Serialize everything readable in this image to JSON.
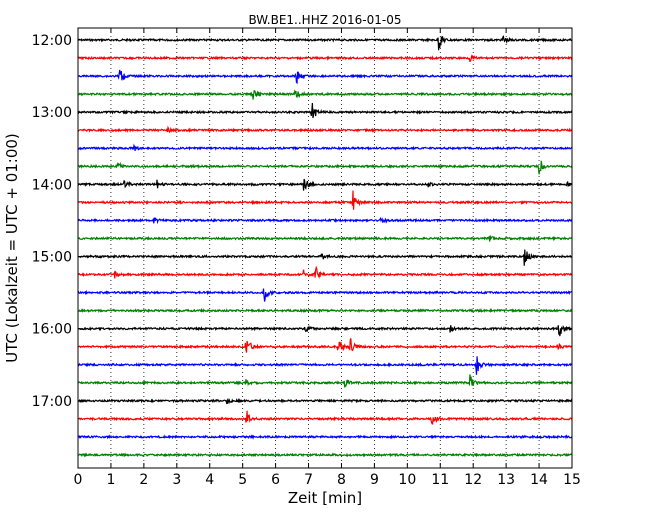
{
  "chart_data": {
    "type": "line",
    "title": "BW.BE1..HHZ 2016-01-05",
    "xlabel": "Zeit  [min]",
    "ylabel": "UTC (Lokalzeit = UTC + 01:00)",
    "xlim": [
      0,
      15
    ],
    "x_ticks": [
      "0",
      "1",
      "2",
      "3",
      "4",
      "5",
      "6",
      "7",
      "8",
      "9",
      "10",
      "11",
      "12",
      "13",
      "14",
      "15"
    ],
    "y_ticks": [
      "12:00",
      "13:00",
      "14:00",
      "15:00",
      "16:00",
      "17:00"
    ],
    "grid": "vertical dotted",
    "colors": [
      "#000000",
      "#ff0000",
      "#0000ff",
      "#008000"
    ],
    "rows": [
      {
        "time": "12:00",
        "color": "#000000",
        "events": [
          {
            "x": 10.95,
            "amp": 11
          },
          {
            "x": 12.9,
            "amp": 5
          }
        ]
      },
      {
        "time": "12:15",
        "color": "#ff0000",
        "events": [
          {
            "x": 11.9,
            "amp": 3
          }
        ]
      },
      {
        "time": "12:30",
        "color": "#0000ff",
        "events": [
          {
            "x": 1.25,
            "amp": 9
          },
          {
            "x": 6.6,
            "amp": 11
          }
        ]
      },
      {
        "time": "12:45",
        "color": "#008000",
        "events": [
          {
            "x": 5.3,
            "amp": 10
          },
          {
            "x": 6.6,
            "amp": 6
          }
        ]
      },
      {
        "time": "13:00",
        "color": "#000000",
        "events": [
          {
            "x": 7.1,
            "amp": 11
          }
        ]
      },
      {
        "time": "13:15",
        "color": "#ff0000",
        "events": [
          {
            "x": 2.7,
            "amp": 3
          }
        ]
      },
      {
        "time": "13:30",
        "color": "#0000ff",
        "events": [
          {
            "x": 1.7,
            "amp": 3
          }
        ]
      },
      {
        "time": "13:45",
        "color": "#008000",
        "events": [
          {
            "x": 1.2,
            "amp": 4
          },
          {
            "x": 14.0,
            "amp": 10
          }
        ]
      },
      {
        "time": "14:00",
        "color": "#000000",
        "events": [
          {
            "x": 1.4,
            "amp": 5
          },
          {
            "x": 2.4,
            "amp": 4
          },
          {
            "x": 6.85,
            "amp": 9
          },
          {
            "x": 10.6,
            "amp": 3
          },
          {
            "x": 14.85,
            "amp": 4
          }
        ]
      },
      {
        "time": "14:15",
        "color": "#ff0000",
        "events": [
          {
            "x": 8.35,
            "amp": 11
          }
        ]
      },
      {
        "time": "14:30",
        "color": "#0000ff",
        "events": [
          {
            "x": 2.3,
            "amp": 3
          },
          {
            "x": 9.2,
            "amp": 3
          }
        ]
      },
      {
        "time": "14:45",
        "color": "#008000",
        "events": [
          {
            "x": 12.5,
            "amp": 3
          }
        ]
      },
      {
        "time": "15:00",
        "color": "#000000",
        "events": [
          {
            "x": 7.4,
            "amp": 5
          },
          {
            "x": 13.55,
            "amp": 13
          }
        ]
      },
      {
        "time": "15:15",
        "color": "#ff0000",
        "events": [
          {
            "x": 1.1,
            "amp": 5
          },
          {
            "x": 6.85,
            "amp": 4
          },
          {
            "x": 7.2,
            "amp": 9
          }
        ]
      },
      {
        "time": "15:30",
        "color": "#0000ff",
        "events": [
          {
            "x": 5.65,
            "amp": 11
          }
        ]
      },
      {
        "time": "15:45",
        "color": "#008000",
        "events": []
      },
      {
        "time": "16:00",
        "color": "#000000",
        "events": [
          {
            "x": 6.9,
            "amp": 4
          },
          {
            "x": 11.3,
            "amp": 3
          },
          {
            "x": 14.6,
            "amp": 12
          }
        ]
      },
      {
        "time": "16:15",
        "color": "#ff0000",
        "events": [
          {
            "x": 5.1,
            "amp": 14
          },
          {
            "x": 7.9,
            "amp": 10
          },
          {
            "x": 8.25,
            "amp": 12
          },
          {
            "x": 14.55,
            "amp": 4
          }
        ]
      },
      {
        "time": "16:30",
        "color": "#0000ff",
        "events": [
          {
            "x": 12.1,
            "amp": 10
          }
        ]
      },
      {
        "time": "16:45",
        "color": "#008000",
        "events": [
          {
            "x": 5.1,
            "amp": 3
          },
          {
            "x": 8.1,
            "amp": 5
          },
          {
            "x": 11.9,
            "amp": 8
          }
        ]
      },
      {
        "time": "17:00",
        "color": "#000000",
        "events": [
          {
            "x": 4.5,
            "amp": 3
          }
        ]
      },
      {
        "time": "17:15",
        "color": "#ff0000",
        "events": [
          {
            "x": 5.1,
            "amp": 11
          },
          {
            "x": 10.75,
            "amp": 7
          }
        ]
      },
      {
        "time": "17:30",
        "color": "#0000ff",
        "events": []
      },
      {
        "time": "17:45",
        "color": "#008000",
        "events": []
      }
    ]
  }
}
